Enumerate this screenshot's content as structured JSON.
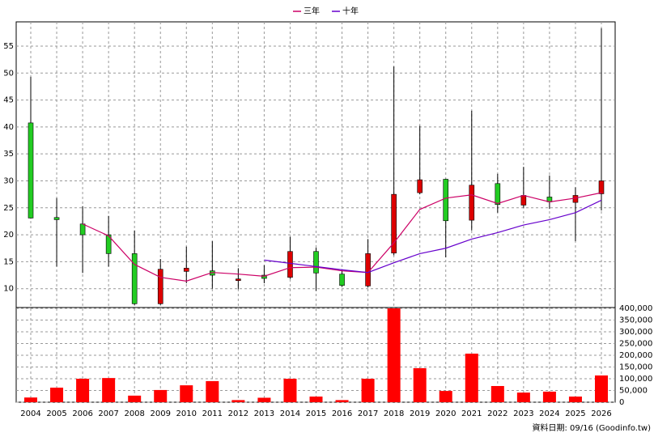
{
  "chart_data": [
    {
      "type": "candlestick",
      "categories": [
        "2004",
        "2005",
        "2006",
        "2007",
        "2008",
        "2009",
        "2010",
        "2011",
        "2012",
        "2013",
        "2014",
        "2015",
        "2016",
        "2017",
        "2018",
        "2019",
        "2020",
        "2021",
        "2022",
        "2023",
        "2024",
        "2025",
        "2026"
      ],
      "open": [
        40.75,
        23.2,
        22.0,
        20.0,
        16.5,
        7.2,
        13.2,
        13.3,
        11.8,
        12.5,
        12.1,
        16.9,
        12.7,
        10.5,
        16.6,
        27.8,
        30.3,
        22.7,
        29.5,
        25.5,
        27.0,
        26.0,
        27.6
      ],
      "close": [
        23.1,
        22.8,
        20.0,
        16.5,
        7.2,
        13.6,
        13.8,
        12.5,
        11.8,
        11.9,
        16.9,
        12.9,
        10.6,
        16.5,
        27.5,
        30.2,
        22.6,
        29.2,
        25.6,
        27.3,
        26.1,
        27.3,
        30.0
      ],
      "high": [
        49.3,
        26.8,
        25.3,
        23.5,
        20.8,
        15.5,
        17.8,
        18.8,
        13.8,
        14.35,
        19.6,
        17.6,
        13.6,
        19.2,
        51.2,
        40.2,
        30.4,
        43.0,
        31.3,
        32.6,
        31.0,
        28.8,
        58.3
      ],
      "low": [
        23.0,
        14.1,
        12.9,
        14.1,
        7.0,
        7.0,
        11.0,
        10.0,
        9.9,
        11.0,
        11.8,
        9.6,
        10.3,
        10.2,
        16.2,
        27.5,
        15.8,
        20.8,
        24.1,
        25.0,
        24.8,
        18.8,
        24.5
      ],
      "up_color": "#dd0000",
      "down_color": "#22cc22",
      "series": [
        {
          "name": "三年",
          "color": "#cc0066",
          "values": [
            null,
            null,
            22.0,
            19.8,
            14.5,
            12.1,
            11.4,
            13.0,
            12.7,
            12.3,
            13.9,
            14.0,
            13.3,
            13.0,
            18.5,
            24.7,
            26.8,
            27.4,
            25.8,
            27.3,
            26.1,
            26.8,
            27.8
          ]
        },
        {
          "name": "十年",
          "color": "#6600cc",
          "values": [
            null,
            null,
            null,
            null,
            null,
            null,
            null,
            null,
            null,
            15.3,
            14.7,
            14.1,
            13.5,
            13.0,
            14.8,
            16.5,
            17.5,
            19.2,
            20.4,
            21.8,
            22.8,
            24.1,
            26.4
          ]
        }
      ],
      "ylim": [
        6.5,
        59.5
      ],
      "yticks": [
        10,
        15,
        20,
        25,
        30,
        35,
        40,
        45,
        50,
        55
      ],
      "grid": true
    },
    {
      "type": "bar",
      "axis": "y2",
      "values": [
        20000,
        62000,
        100000,
        103000,
        28000,
        52000,
        72000,
        90000,
        9000,
        19000,
        100000,
        24000,
        9000,
        100000,
        400000,
        145000,
        48000,
        207000,
        69000,
        41000,
        45000,
        24000,
        114000
      ],
      "color": "#ff0000",
      "ylim": [
        0,
        400000
      ],
      "yticks": [
        0,
        {
          "value": 50000,
          "label": "50,000"
        },
        {
          "value": 100000,
          "label": "100,000"
        },
        {
          "value": 150000,
          "label": "150,000"
        },
        {
          "value": 200000,
          "label": "200,000"
        },
        {
          "value": 250000,
          "label": "250,000"
        },
        {
          "value": 300000,
          "label": "300,000"
        },
        {
          "value": 350000,
          "label": "350,000"
        },
        {
          "value": 400000,
          "label": "400,000"
        }
      ],
      "grid": true
    }
  ],
  "footer": "資料日期: 09/16 (Goodinfo.tw)"
}
